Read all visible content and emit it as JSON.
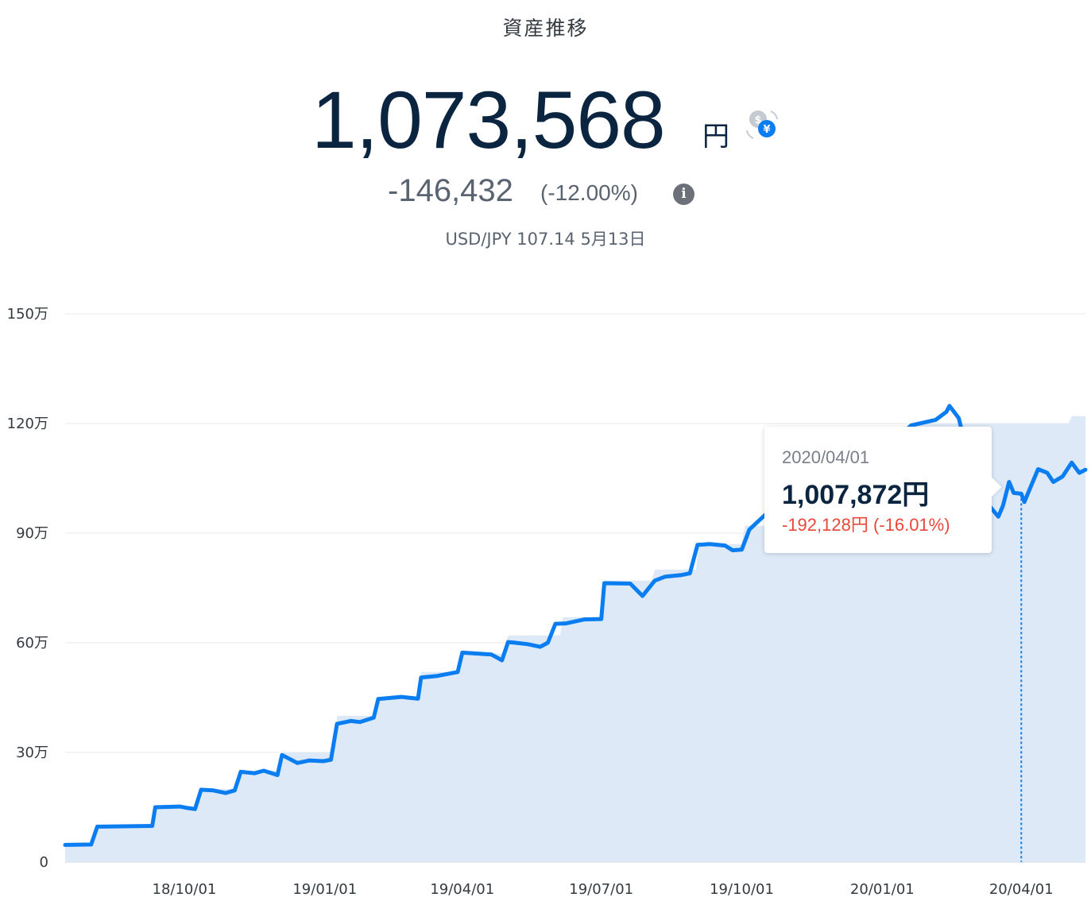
{
  "header": {
    "title": "資産推移",
    "total_value": "1,073,568",
    "unit": "円",
    "change": "-146,432",
    "change_pct": "(-12.00%)",
    "rate_text": "USD/JPY 107.14 5月13日",
    "fx_icon": "currency-switch-icon",
    "info_icon": "info-icon"
  },
  "tooltip": {
    "date": "2020/04/01",
    "value": "1,007,872円",
    "diff": "-192,128円 (-16.01%)"
  },
  "colors": {
    "line": "#0a7df0",
    "area": "#dde9f7",
    "grid": "#e6e8eb",
    "negative": "#e8483a"
  },
  "chart_data": {
    "type": "area",
    "title": "資産推移",
    "ylim": [
      0,
      1500000
    ],
    "yticks": [
      {
        "value": 0,
        "label": "0"
      },
      {
        "value": 300000,
        "label": "30万"
      },
      {
        "value": 600000,
        "label": "60万"
      },
      {
        "value": 900000,
        "label": "90万"
      },
      {
        "value": 1200000,
        "label": "120万"
      },
      {
        "value": 1500000,
        "label": "150万"
      }
    ],
    "xlim": [
      "2018-07-15",
      "2020-05-13"
    ],
    "xticks": [
      {
        "date": "2018-10-01",
        "label": "18/10/01"
      },
      {
        "date": "2019-01-01",
        "label": "19/01/01"
      },
      {
        "date": "2019-04-01",
        "label": "19/04/01"
      },
      {
        "date": "2019-07-01",
        "label": "19/07/01"
      },
      {
        "date": "2019-10-01",
        "label": "19/10/01"
      },
      {
        "date": "2020-01-01",
        "label": "20/01/01"
      },
      {
        "date": "2020-04-01",
        "label": "20/04/01"
      }
    ],
    "highlight_date": "2020-04-01",
    "series": [
      {
        "type": "area",
        "points": [
          [
            "2018-07-15",
            50000
          ],
          [
            "2018-08-01",
            50000
          ],
          [
            "2018-08-05",
            100000
          ],
          [
            "2018-09-10",
            100000
          ],
          [
            "2018-09-12",
            150000
          ],
          [
            "2018-10-10",
            150000
          ],
          [
            "2018-10-12",
            200000
          ],
          [
            "2018-11-05",
            200000
          ],
          [
            "2018-11-07",
            250000
          ],
          [
            "2018-12-03",
            250000
          ],
          [
            "2018-12-05",
            300000
          ],
          [
            "2019-01-07",
            300000
          ],
          [
            "2019-01-09",
            400000
          ],
          [
            "2019-02-03",
            400000
          ],
          [
            "2019-02-05",
            450000
          ],
          [
            "2019-03-03",
            450000
          ],
          [
            "2019-03-05",
            520000
          ],
          [
            "2019-03-29",
            520000
          ],
          [
            "2019-04-01",
            570000
          ],
          [
            "2019-04-28",
            570000
          ],
          [
            "2019-05-01",
            620000
          ],
          [
            "2019-06-04",
            620000
          ],
          [
            "2019-06-06",
            670000
          ],
          [
            "2019-07-01",
            670000
          ],
          [
            "2019-07-03",
            770000
          ],
          [
            "2019-08-03",
            770000
          ],
          [
            "2019-08-05",
            800000
          ],
          [
            "2019-09-01",
            800000
          ],
          [
            "2019-09-03",
            870000
          ],
          [
            "2019-10-01",
            870000
          ],
          [
            "2019-10-03",
            920000
          ],
          [
            "2020-01-20",
            920000
          ],
          [
            "2020-01-22",
            1200000
          ],
          [
            "2020-05-02",
            1200000
          ],
          [
            "2020-05-04",
            1220000
          ],
          [
            "2020-05-13",
            1220000
          ]
        ]
      },
      {
        "type": "line",
        "points": [
          [
            "2018-07-15",
            47000
          ],
          [
            "2018-08-01",
            48000
          ],
          [
            "2018-08-05",
            97000
          ],
          [
            "2018-09-10",
            99000
          ],
          [
            "2018-09-12",
            150000
          ],
          [
            "2018-09-28",
            152000
          ],
          [
            "2018-10-03",
            148000
          ],
          [
            "2018-10-08",
            145000
          ],
          [
            "2018-10-12",
            198000
          ],
          [
            "2018-10-20",
            196000
          ],
          [
            "2018-10-28",
            189000
          ],
          [
            "2018-11-03",
            196000
          ],
          [
            "2018-11-07",
            247000
          ],
          [
            "2018-11-16",
            243000
          ],
          [
            "2018-11-22",
            250000
          ],
          [
            "2018-12-01",
            238000
          ],
          [
            "2018-12-04",
            293000
          ],
          [
            "2018-12-14",
            271000
          ],
          [
            "2018-12-22",
            278000
          ],
          [
            "2018-12-31",
            276000
          ],
          [
            "2019-01-05",
            280000
          ],
          [
            "2019-01-09",
            378000
          ],
          [
            "2019-01-18",
            386000
          ],
          [
            "2019-01-24",
            383000
          ],
          [
            "2019-02-02",
            395000
          ],
          [
            "2019-02-05",
            446000
          ],
          [
            "2019-02-20",
            452000
          ],
          [
            "2019-03-03",
            447000
          ],
          [
            "2019-03-05",
            505000
          ],
          [
            "2019-03-15",
            509000
          ],
          [
            "2019-03-29",
            520000
          ],
          [
            "2019-04-01",
            573000
          ],
          [
            "2019-04-20",
            568000
          ],
          [
            "2019-04-27",
            552000
          ],
          [
            "2019-05-01",
            602000
          ],
          [
            "2019-05-06",
            600000
          ],
          [
            "2019-05-14",
            596000
          ],
          [
            "2019-05-22",
            589000
          ],
          [
            "2019-05-27",
            600000
          ],
          [
            "2019-06-01",
            652000
          ],
          [
            "2019-06-08",
            653000
          ],
          [
            "2019-06-20",
            664000
          ],
          [
            "2019-07-01",
            665000
          ],
          [
            "2019-07-03",
            763000
          ],
          [
            "2019-07-20",
            762000
          ],
          [
            "2019-07-28",
            728000
          ],
          [
            "2019-08-05",
            770000
          ],
          [
            "2019-08-12",
            781000
          ],
          [
            "2019-08-22",
            785000
          ],
          [
            "2019-08-28",
            790000
          ],
          [
            "2019-09-02",
            868000
          ],
          [
            "2019-09-10",
            870000
          ],
          [
            "2019-09-20",
            866000
          ],
          [
            "2019-09-25",
            853000
          ],
          [
            "2019-10-01",
            855000
          ],
          [
            "2019-10-06",
            910000
          ],
          [
            "2019-10-15",
            945000
          ],
          [
            "2019-11-01",
            1010000
          ],
          [
            "2019-12-01",
            1080000
          ],
          [
            "2020-01-10",
            1160000
          ],
          [
            "2020-01-20",
            1195000
          ],
          [
            "2020-02-05",
            1210000
          ],
          [
            "2020-02-12",
            1232000
          ],
          [
            "2020-02-14",
            1248000
          ],
          [
            "2020-02-20",
            1215000
          ],
          [
            "2020-03-01",
            1050000
          ],
          [
            "2020-03-10",
            980000
          ],
          [
            "2020-03-17",
            945000
          ],
          [
            "2020-03-20",
            975000
          ],
          [
            "2020-03-24",
            1040000
          ],
          [
            "2020-03-27",
            1010000
          ],
          [
            "2020-04-01",
            1007872
          ],
          [
            "2020-04-03",
            985000
          ],
          [
            "2020-04-08",
            1035000
          ],
          [
            "2020-04-12",
            1075000
          ],
          [
            "2020-04-18",
            1065000
          ],
          [
            "2020-04-22",
            1040000
          ],
          [
            "2020-04-28",
            1055000
          ],
          [
            "2020-05-04",
            1093000
          ],
          [
            "2020-05-09",
            1065000
          ],
          [
            "2020-05-13",
            1073568
          ]
        ]
      }
    ]
  }
}
